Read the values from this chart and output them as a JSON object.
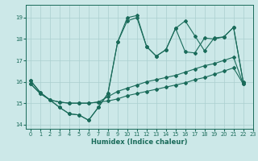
{
  "xlabel": "Humidex (Indice chaleur)",
  "xlim": [
    -0.5,
    23
  ],
  "ylim": [
    13.8,
    19.6
  ],
  "yticks": [
    14,
    15,
    16,
    17,
    18,
    19
  ],
  "xticks": [
    0,
    1,
    2,
    3,
    4,
    5,
    6,
    7,
    8,
    9,
    10,
    11,
    12,
    13,
    14,
    15,
    16,
    17,
    18,
    19,
    20,
    21,
    22,
    23
  ],
  "bg_color": "#cce8e8",
  "grid_color": "#aacfcf",
  "line_color": "#1a6b5a",
  "line1_x": [
    0,
    1,
    2,
    3,
    4,
    5,
    6,
    7,
    8,
    9,
    10,
    11,
    12,
    13,
    14,
    15,
    16,
    17,
    18,
    19,
    20,
    21,
    22
  ],
  "line1_y": [
    15.9,
    15.45,
    15.15,
    15.05,
    15.0,
    15.0,
    15.0,
    15.05,
    15.1,
    15.2,
    15.35,
    15.45,
    15.55,
    15.65,
    15.75,
    15.85,
    15.95,
    16.1,
    16.2,
    16.35,
    16.5,
    16.65,
    15.9
  ],
  "line2_x": [
    0,
    1,
    2,
    3,
    4,
    5,
    6,
    7,
    8,
    9,
    10,
    11,
    12,
    13,
    14,
    15,
    16,
    17,
    18,
    19,
    20,
    21,
    22
  ],
  "line2_y": [
    15.9,
    15.45,
    15.15,
    15.05,
    15.0,
    15.0,
    15.0,
    15.05,
    15.3,
    15.55,
    15.7,
    15.85,
    16.0,
    16.1,
    16.2,
    16.3,
    16.45,
    16.6,
    16.75,
    16.85,
    17.0,
    17.15,
    15.9
  ],
  "line3_x": [
    0,
    1,
    3,
    4,
    5,
    6,
    7,
    8,
    9,
    10,
    11,
    12,
    13,
    14,
    15,
    16,
    17,
    18,
    19,
    20,
    21,
    22
  ],
  "line3_y": [
    16.05,
    15.5,
    14.8,
    14.5,
    14.45,
    14.2,
    14.8,
    15.45,
    17.85,
    18.85,
    19.0,
    17.65,
    17.2,
    17.5,
    18.5,
    18.85,
    18.15,
    17.45,
    18.05,
    18.1,
    18.55,
    16.0
  ],
  "line4_x": [
    0,
    1,
    3,
    4,
    5,
    6,
    7,
    8,
    9,
    10,
    11,
    12,
    13,
    14,
    15,
    16,
    17,
    18,
    19,
    20,
    21,
    22
  ],
  "line4_y": [
    16.05,
    15.5,
    14.8,
    14.5,
    14.45,
    14.2,
    14.8,
    15.45,
    17.85,
    19.0,
    19.1,
    17.65,
    17.2,
    17.5,
    18.5,
    17.4,
    17.35,
    18.05,
    18.0,
    18.1,
    18.55,
    16.0
  ]
}
